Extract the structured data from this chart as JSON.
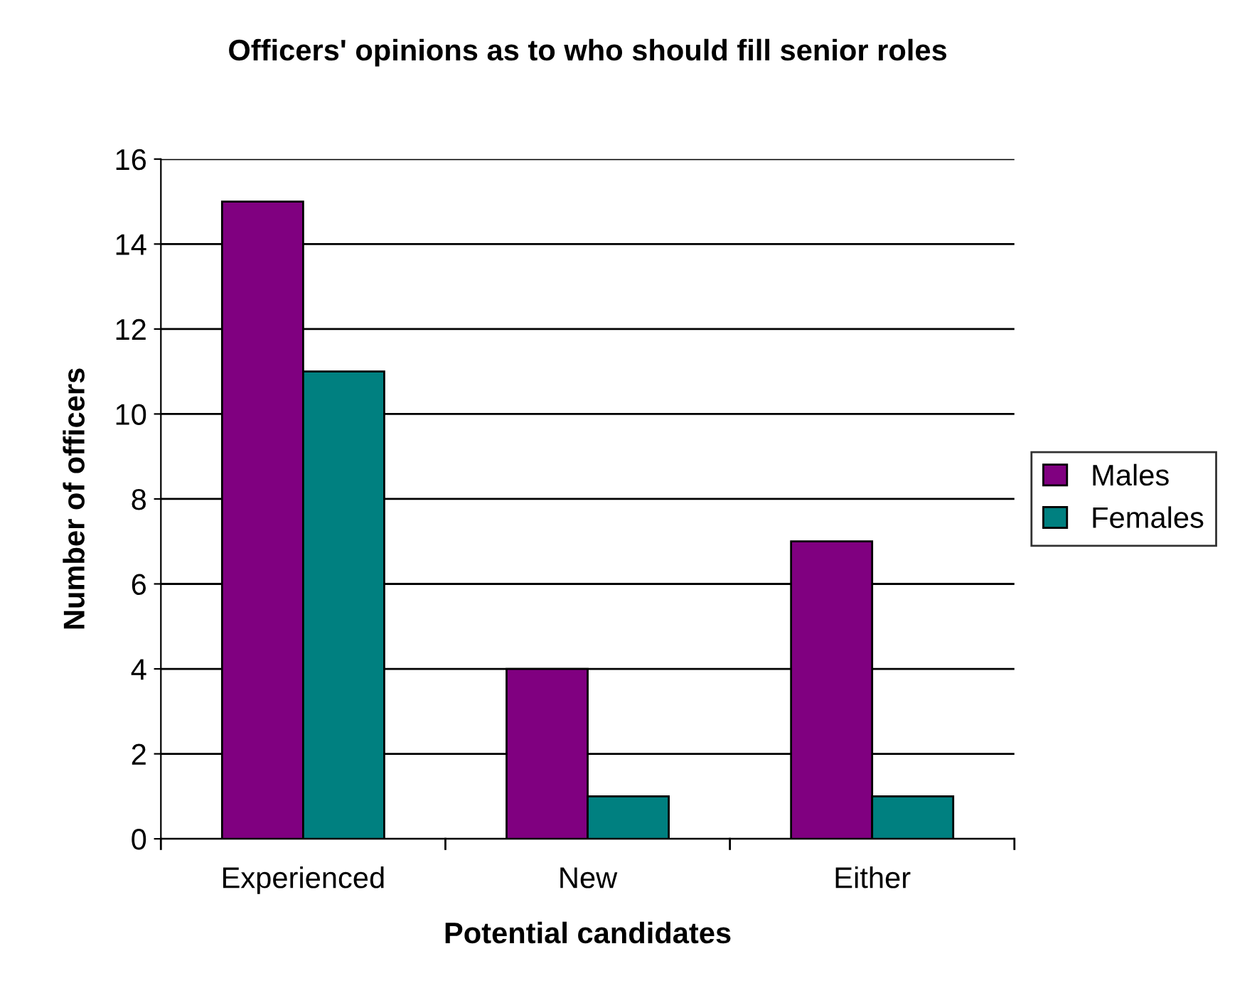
{
  "chart_data": {
    "type": "bar",
    "title": "Officers' opinions as to who should fill senior roles",
    "xlabel": "Potential candidates",
    "ylabel": "Number of officers",
    "categories": [
      "Experienced",
      "New",
      "Either"
    ],
    "series": [
      {
        "name": "Males",
        "color": "#800080",
        "values": [
          15,
          4,
          7
        ]
      },
      {
        "name": "Females",
        "color": "#008080",
        "values": [
          11,
          1,
          1
        ]
      }
    ],
    "ylim": [
      0,
      16
    ],
    "yticks": [
      0,
      2,
      4,
      6,
      8,
      10,
      12,
      14,
      16
    ],
    "grid": "y",
    "legend": "right"
  }
}
